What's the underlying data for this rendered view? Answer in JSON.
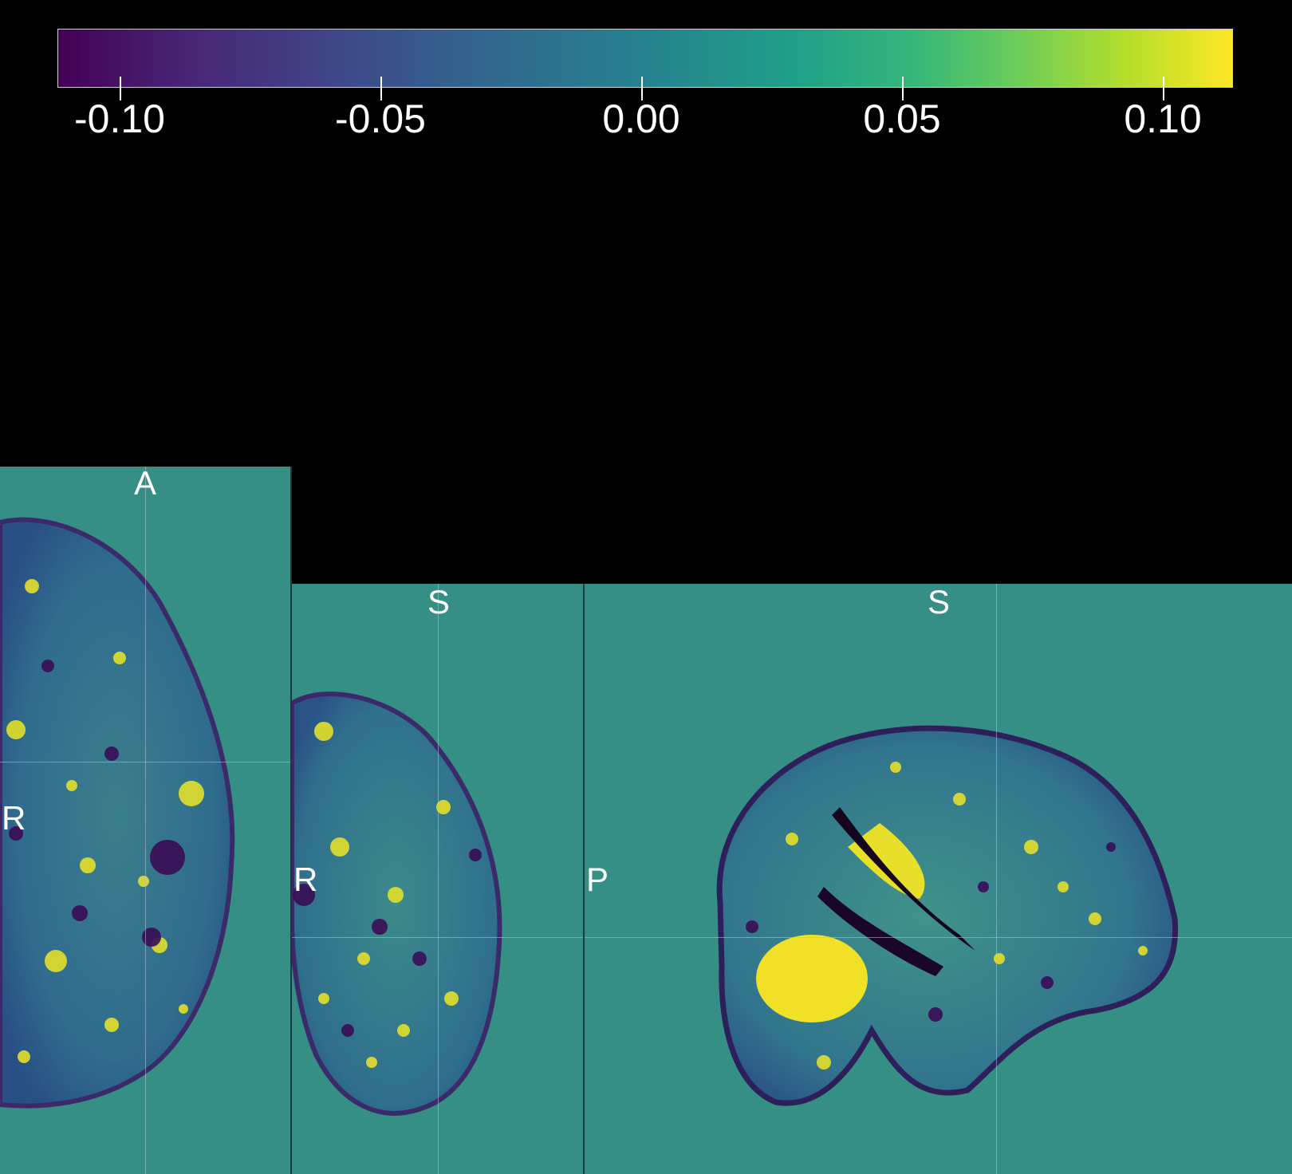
{
  "colorbar": {
    "colormap": "viridis",
    "min": -0.12,
    "max": 0.115,
    "ticks": [
      "-0.10",
      "-0.05",
      "0.00",
      "0.05",
      "0.10"
    ]
  },
  "panels": {
    "axial": {
      "top_label": "A",
      "left_label": "R"
    },
    "coronal": {
      "top_label": "S",
      "left_label": "R"
    },
    "sagittal": {
      "top_label": "S",
      "left_label": "P"
    }
  },
  "colors": {
    "background": "#000000",
    "panel_fill": "#368f85",
    "low": "#440154",
    "high": "#fde725"
  }
}
